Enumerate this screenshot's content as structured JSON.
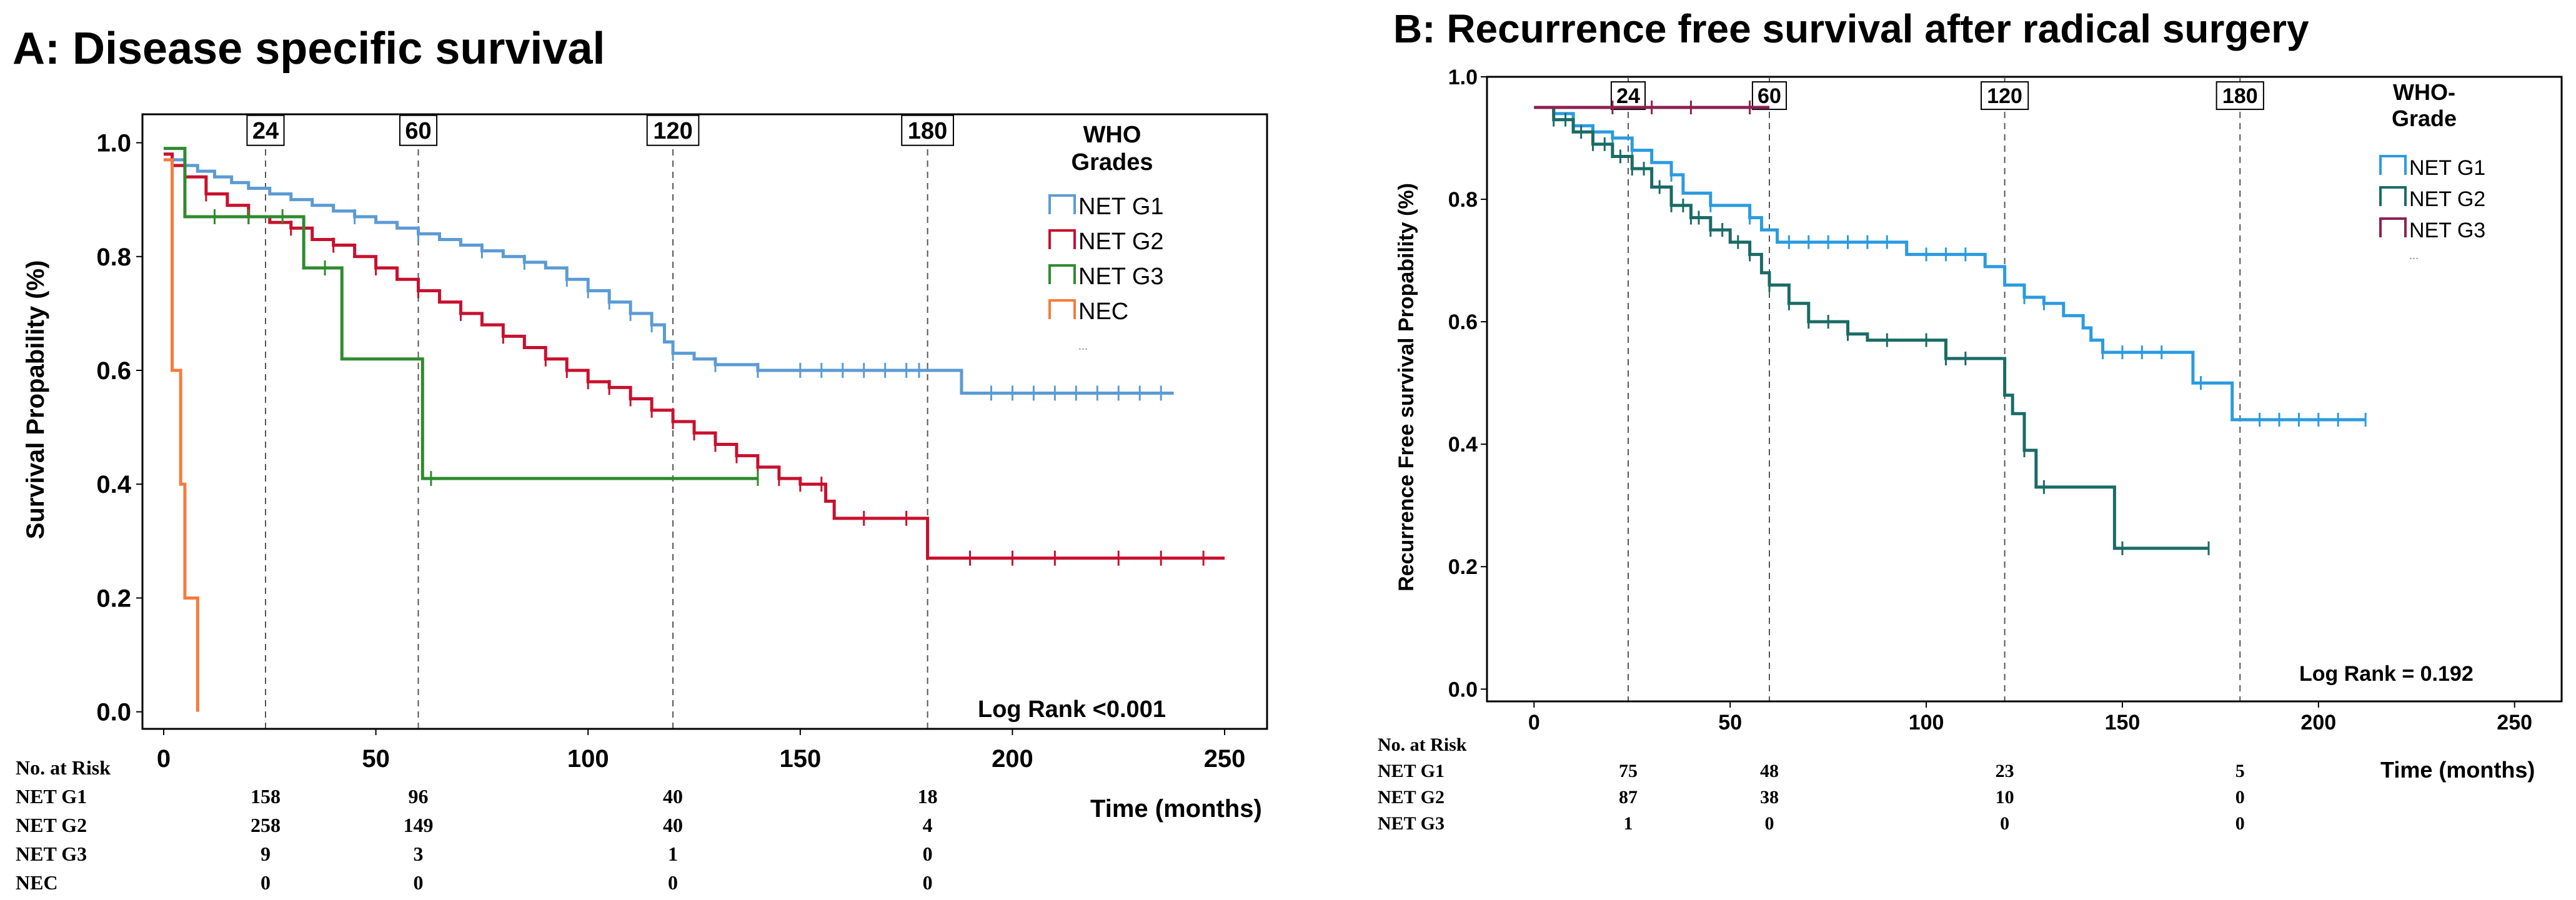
{
  "chart_data": [
    {
      "id": "A",
      "type": "line",
      "subtype": "kaplan-meier",
      "title": "A: Disease specific survival",
      "xlabel": "Time (months)",
      "ylabel": "Survival Propability (%)",
      "xlim": [
        -5,
        260
      ],
      "ylim": [
        -0.03,
        1.05
      ],
      "xticks": [
        0,
        50,
        100,
        150,
        200,
        250
      ],
      "yticks": [
        0.0,
        0.2,
        0.4,
        0.6,
        0.8,
        1.0
      ],
      "ytick_labels": [
        "0.0",
        "0.2",
        "0.4",
        "0.6",
        "0.8",
        "1.0"
      ],
      "ref_lines": [
        24,
        60,
        120,
        180
      ],
      "ref_labels": [
        "24",
        "60",
        "120",
        "180"
      ],
      "legend_title": "WHO Grades",
      "legend_extra": "...",
      "annotation": "Log Rank <0.001",
      "risk_table": {
        "header": "No. at Risk",
        "rows": [
          {
            "label": "NET G1",
            "values": [
              "158",
              "96",
              "40",
              "18"
            ]
          },
          {
            "label": "NET G2",
            "values": [
              "258",
              "149",
              "40",
              "4"
            ]
          },
          {
            "label": "NET G3",
            "values": [
              "9",
              "3",
              "1",
              "0"
            ]
          },
          {
            "label": "NEC",
            "values": [
              "0",
              "0",
              "0",
              "0"
            ]
          }
        ]
      },
      "series": [
        {
          "name": "NET G1",
          "color": "#5b9bd5",
          "steps": [
            [
              0,
              0.98
            ],
            [
              2,
              0.97
            ],
            [
              5,
              0.96
            ],
            [
              8,
              0.95
            ],
            [
              12,
              0.94
            ],
            [
              16,
              0.93
            ],
            [
              20,
              0.92
            ],
            [
              25,
              0.91
            ],
            [
              30,
              0.9
            ],
            [
              35,
              0.89
            ],
            [
              40,
              0.88
            ],
            [
              45,
              0.87
            ],
            [
              50,
              0.86
            ],
            [
              55,
              0.85
            ],
            [
              60,
              0.84
            ],
            [
              65,
              0.83
            ],
            [
              70,
              0.82
            ],
            [
              75,
              0.81
            ],
            [
              80,
              0.8
            ],
            [
              85,
              0.79
            ],
            [
              90,
              0.78
            ],
            [
              95,
              0.76
            ],
            [
              100,
              0.74
            ],
            [
              105,
              0.72
            ],
            [
              110,
              0.7
            ],
            [
              115,
              0.68
            ],
            [
              118,
              0.65
            ],
            [
              120,
              0.63
            ],
            [
              125,
              0.62
            ],
            [
              130,
              0.61
            ],
            [
              140,
              0.6
            ],
            [
              188,
              0.56
            ],
            [
              238,
              0.56
            ]
          ],
          "censors": [
            45,
            60,
            75,
            85,
            95,
            100,
            105,
            110,
            115,
            120,
            130,
            140,
            150,
            155,
            160,
            165,
            170,
            175,
            178,
            195,
            200,
            205,
            210,
            215,
            220,
            225,
            230,
            235
          ]
        },
        {
          "name": "NET G2",
          "color": "#c8102e",
          "steps": [
            [
              0,
              0.98
            ],
            [
              2,
              0.96
            ],
            [
              5,
              0.94
            ],
            [
              10,
              0.91
            ],
            [
              15,
              0.89
            ],
            [
              20,
              0.87
            ],
            [
              25,
              0.86
            ],
            [
              30,
              0.85
            ],
            [
              35,
              0.83
            ],
            [
              40,
              0.82
            ],
            [
              45,
              0.8
            ],
            [
              50,
              0.78
            ],
            [
              55,
              0.76
            ],
            [
              60,
              0.74
            ],
            [
              65,
              0.72
            ],
            [
              70,
              0.7
            ],
            [
              75,
              0.68
            ],
            [
              80,
              0.66
            ],
            [
              85,
              0.64
            ],
            [
              90,
              0.62
            ],
            [
              95,
              0.6
            ],
            [
              100,
              0.58
            ],
            [
              105,
              0.57
            ],
            [
              110,
              0.55
            ],
            [
              115,
              0.53
            ],
            [
              120,
              0.51
            ],
            [
              125,
              0.49
            ],
            [
              130,
              0.47
            ],
            [
              135,
              0.45
            ],
            [
              140,
              0.43
            ],
            [
              145,
              0.41
            ],
            [
              150,
              0.4
            ],
            [
              156,
              0.37
            ],
            [
              158,
              0.34
            ],
            [
              176,
              0.34
            ],
            [
              180,
              0.27
            ],
            [
              250,
              0.27
            ]
          ],
          "censors": [
            10,
            20,
            30,
            40,
            50,
            60,
            70,
            80,
            90,
            95,
            100,
            105,
            110,
            115,
            120,
            125,
            130,
            135,
            140,
            145,
            150,
            155,
            165,
            175,
            190,
            200,
            210,
            225,
            235,
            245
          ]
        },
        {
          "name": "NET G3",
          "color": "#2e8b2e",
          "steps": [
            [
              0,
              0.99
            ],
            [
              3,
              0.99
            ],
            [
              5,
              0.87
            ],
            [
              30,
              0.87
            ],
            [
              33,
              0.78
            ],
            [
              40,
              0.78
            ],
            [
              42,
              0.62
            ],
            [
              60,
              0.62
            ],
            [
              61,
              0.41
            ],
            [
              140,
              0.41
            ]
          ],
          "censors": [
            12,
            20,
            28,
            38,
            63,
            140
          ]
        },
        {
          "name": "NEC",
          "color": "#f47c3c",
          "steps": [
            [
              0,
              0.97
            ],
            [
              1,
              0.97
            ],
            [
              2,
              0.6
            ],
            [
              3,
              0.6
            ],
            [
              4,
              0.4
            ],
            [
              5,
              0.2
            ],
            [
              8,
              0.2
            ],
            [
              8,
              0.0
            ]
          ],
          "censors": []
        }
      ]
    },
    {
      "id": "B",
      "type": "line",
      "subtype": "kaplan-meier",
      "title": "B: Recurrence free survival after radical surgery",
      "xlabel": "Time (months)",
      "ylabel": "Recurrence Free survival Propability (%)",
      "xlim": [
        -12,
        262
      ],
      "ylim": [
        -0.02,
        1.0
      ],
      "xticks": [
        0,
        50,
        100,
        150,
        200,
        250
      ],
      "yticks": [
        0.0,
        0.2,
        0.4,
        0.6,
        0.8,
        1.0
      ],
      "ytick_labels": [
        "0.0",
        "0.2",
        "0.4",
        "0.6",
        "0.8",
        "1.0"
      ],
      "ref_lines": [
        24,
        60,
        120,
        180
      ],
      "ref_labels": [
        "24",
        "60",
        "120",
        "180"
      ],
      "legend_title": "WHO-Grade",
      "legend_extra": "...",
      "annotation": "Log Rank = 0.192",
      "risk_table": {
        "header": "No. at Risk",
        "rows": [
          {
            "label": "NET G1",
            "values": [
              "75",
              "48",
              "23",
              "5"
            ]
          },
          {
            "label": "NET G2",
            "values": [
              "87",
              "38",
              "10",
              "0"
            ]
          },
          {
            "label": "NET G3",
            "values": [
              "1",
              "0",
              "0",
              "0"
            ]
          }
        ]
      },
      "series": [
        {
          "name": "NET G1",
          "color": "#2a9be0",
          "steps": [
            [
              0,
              0.95
            ],
            [
              5,
              0.94
            ],
            [
              10,
              0.92
            ],
            [
              15,
              0.91
            ],
            [
              20,
              0.9
            ],
            [
              25,
              0.88
            ],
            [
              30,
              0.86
            ],
            [
              35,
              0.84
            ],
            [
              38,
              0.81
            ],
            [
              45,
              0.79
            ],
            [
              55,
              0.77
            ],
            [
              58,
              0.75
            ],
            [
              62,
              0.73
            ],
            [
              90,
              0.73
            ],
            [
              95,
              0.71
            ],
            [
              110,
              0.71
            ],
            [
              115,
              0.69
            ],
            [
              120,
              0.66
            ],
            [
              125,
              0.64
            ],
            [
              130,
              0.63
            ],
            [
              135,
              0.61
            ],
            [
              140,
              0.59
            ],
            [
              142,
              0.57
            ],
            [
              145,
              0.55
            ],
            [
              165,
              0.55
            ],
            [
              168,
              0.5
            ],
            [
              175,
              0.5
            ],
            [
              178,
              0.44
            ],
            [
              212,
              0.44
            ]
          ],
          "censors": [
            10,
            20,
            25,
            35,
            45,
            55,
            65,
            70,
            75,
            80,
            85,
            90,
            100,
            105,
            110,
            125,
            130,
            145,
            150,
            155,
            160,
            170,
            185,
            190,
            195,
            200,
            205,
            212
          ]
        },
        {
          "name": "NET G2",
          "color": "#1a6b66",
          "steps": [
            [
              0,
              0.95
            ],
            [
              5,
              0.93
            ],
            [
              10,
              0.91
            ],
            [
              15,
              0.89
            ],
            [
              20,
              0.87
            ],
            [
              25,
              0.85
            ],
            [
              30,
              0.82
            ],
            [
              35,
              0.79
            ],
            [
              40,
              0.77
            ],
            [
              45,
              0.75
            ],
            [
              50,
              0.73
            ],
            [
              55,
              0.71
            ],
            [
              58,
              0.68
            ],
            [
              60,
              0.66
            ],
            [
              65,
              0.63
            ],
            [
              70,
              0.6
            ],
            [
              80,
              0.58
            ],
            [
              85,
              0.57
            ],
            [
              100,
              0.57
            ],
            [
              105,
              0.54
            ],
            [
              118,
              0.54
            ],
            [
              120,
              0.48
            ],
            [
              122,
              0.45
            ],
            [
              125,
              0.39
            ],
            [
              128,
              0.33
            ],
            [
              145,
              0.33
            ],
            [
              148,
              0.23
            ],
            [
              172,
              0.23
            ]
          ],
          "censors": [
            5,
            8,
            12,
            15,
            18,
            22,
            25,
            28,
            32,
            35,
            38,
            40,
            42,
            45,
            48,
            52,
            55,
            60,
            65,
            70,
            75,
            80,
            90,
            100,
            105,
            110,
            125,
            130,
            150,
            172
          ]
        },
        {
          "name": "NET G3",
          "color": "#8b2252",
          "steps": [
            [
              0,
              0.95
            ],
            [
              60,
              0.95
            ]
          ],
          "censors": [
            20,
            30,
            40,
            55
          ]
        }
      ]
    }
  ]
}
